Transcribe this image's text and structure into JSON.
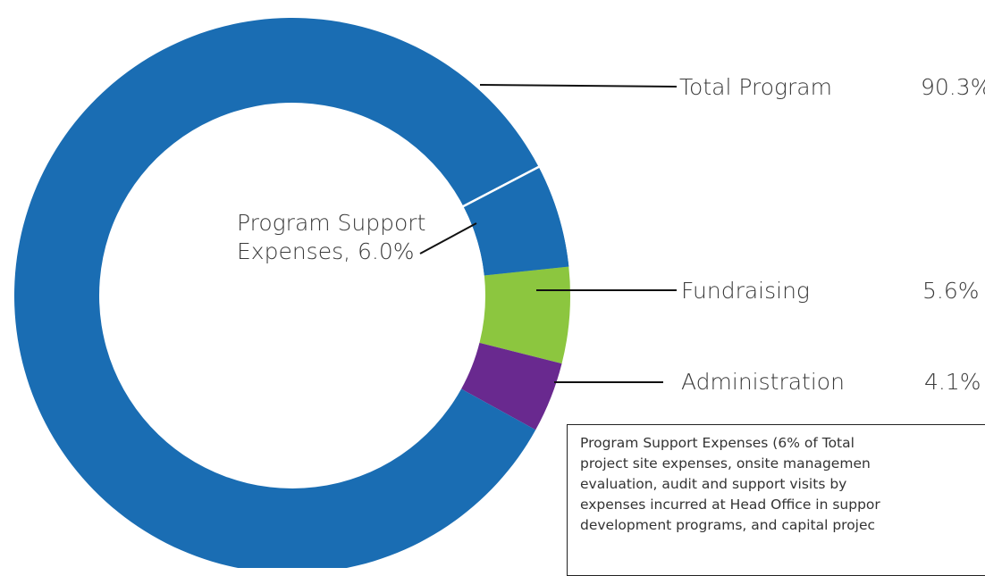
{
  "chart_data": {
    "type": "donut",
    "categories": [
      "Fundraising",
      "Administration",
      "Total Program"
    ],
    "values": [
      5.6,
      4.1,
      90.3
    ],
    "value_labels": [
      "5.6%",
      "4.1%",
      "90.3%"
    ],
    "colors": [
      "#8cc63f",
      "#69298f",
      "#1a6db3"
    ],
    "sub_segment": {
      "label_lines": [
        "Program Support",
        "Expenses, 6.0%"
      ],
      "value": 6.0,
      "of": 2
    }
  },
  "note": {
    "lines": [
      "Program Support Expenses (6% of Total",
      "project site expenses, onsite managemen",
      "evaluation, audit and support visits by",
      "expenses incurred at Head Office in suppor",
      "development programs, and capital projec"
    ]
  }
}
